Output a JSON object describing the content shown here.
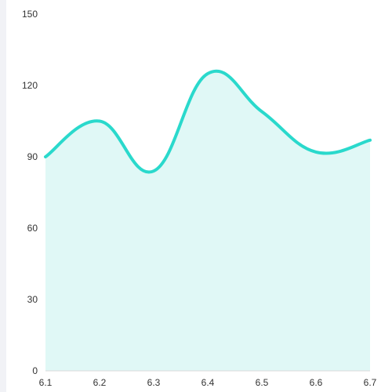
{
  "chart_data": {
    "type": "area",
    "title": "",
    "xlabel": "",
    "ylabel": "",
    "x": [
      "6.1",
      "6.2",
      "6.3",
      "6.4",
      "6.5",
      "6.6",
      "6.7"
    ],
    "series": [
      {
        "values": [
          90,
          105,
          84,
          125,
          109,
          92,
          97
        ],
        "color": "#2ad9cc",
        "fill": "#e0f8f6"
      }
    ],
    "yticks": [
      0,
      30,
      60,
      90,
      120,
      150
    ],
    "ylim": [
      0,
      150
    ],
    "grid": false,
    "smooth": true
  }
}
